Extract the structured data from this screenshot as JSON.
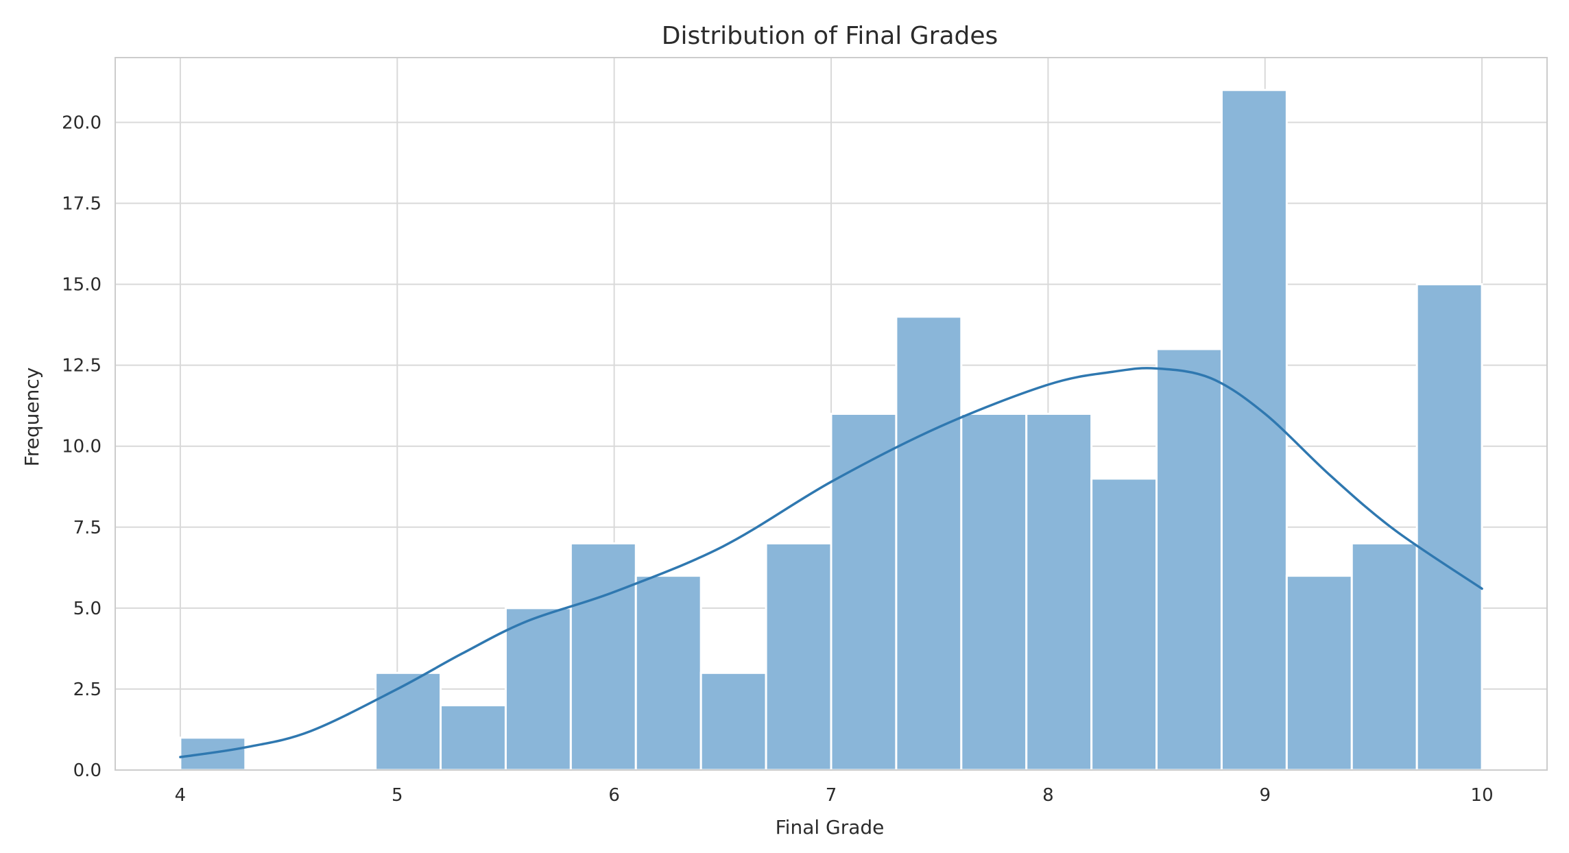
{
  "chart_data": {
    "type": "bar",
    "title": "Distribution of Final Grades",
    "xlabel": "Final Grade",
    "ylabel": "Frequency",
    "xlim": [
      3.7,
      10.3
    ],
    "ylim": [
      0,
      22.0
    ],
    "x_ticks": [
      4,
      5,
      6,
      7,
      8,
      9,
      10
    ],
    "x_tick_labels": [
      "4",
      "5",
      "6",
      "7",
      "8",
      "9",
      "10"
    ],
    "y_ticks": [
      0,
      2.5,
      5,
      7.5,
      10,
      12.5,
      15,
      17.5,
      20
    ],
    "y_tick_labels": [
      "0.0",
      "2.5",
      "5.0",
      "7.5",
      "10.0",
      "12.5",
      "15.0",
      "17.5",
      "20.0"
    ],
    "grid": true,
    "bins": [
      {
        "start": 4.0,
        "end": 4.3,
        "count": 1
      },
      {
        "start": 4.3,
        "end": 4.6,
        "count": 0
      },
      {
        "start": 4.6,
        "end": 4.9,
        "count": 0
      },
      {
        "start": 4.9,
        "end": 5.2,
        "count": 3
      },
      {
        "start": 5.2,
        "end": 5.5,
        "count": 2
      },
      {
        "start": 5.5,
        "end": 5.8,
        "count": 5
      },
      {
        "start": 5.8,
        "end": 6.1,
        "count": 7
      },
      {
        "start": 6.1,
        "end": 6.4,
        "count": 6
      },
      {
        "start": 6.4,
        "end": 6.7,
        "count": 3
      },
      {
        "start": 6.7,
        "end": 7.0,
        "count": 7
      },
      {
        "start": 7.0,
        "end": 7.3,
        "count": 11
      },
      {
        "start": 7.3,
        "end": 7.6,
        "count": 14
      },
      {
        "start": 7.6,
        "end": 7.9,
        "count": 11
      },
      {
        "start": 7.9,
        "end": 8.2,
        "count": 11
      },
      {
        "start": 8.2,
        "end": 8.5,
        "count": 9
      },
      {
        "start": 8.5,
        "end": 8.8,
        "count": 13
      },
      {
        "start": 8.8,
        "end": 9.1,
        "count": 21
      },
      {
        "start": 9.1,
        "end": 9.4,
        "count": 6
      },
      {
        "start": 9.4,
        "end": 9.7,
        "count": 7
      },
      {
        "start": 9.7,
        "end": 10.0,
        "count": 15
      }
    ],
    "kde": {
      "x": [
        4.0,
        4.3,
        4.6,
        5.0,
        5.3,
        5.6,
        6.0,
        6.5,
        7.0,
        7.5,
        8.0,
        8.3,
        8.5,
        8.75,
        9.0,
        9.3,
        9.6,
        10.0
      ],
      "y": [
        0.4,
        0.7,
        1.2,
        2.5,
        3.6,
        4.6,
        5.5,
        6.9,
        8.9,
        10.6,
        11.9,
        12.3,
        12.4,
        12.1,
        11.0,
        9.1,
        7.4,
        5.6
      ]
    },
    "colors": {
      "bar_fill": "#8ab6d9",
      "bar_stroke": "#ffffff",
      "kde_line": "#2f78b0",
      "grid": "#d9d9d9",
      "spine": "#cccccc"
    }
  }
}
